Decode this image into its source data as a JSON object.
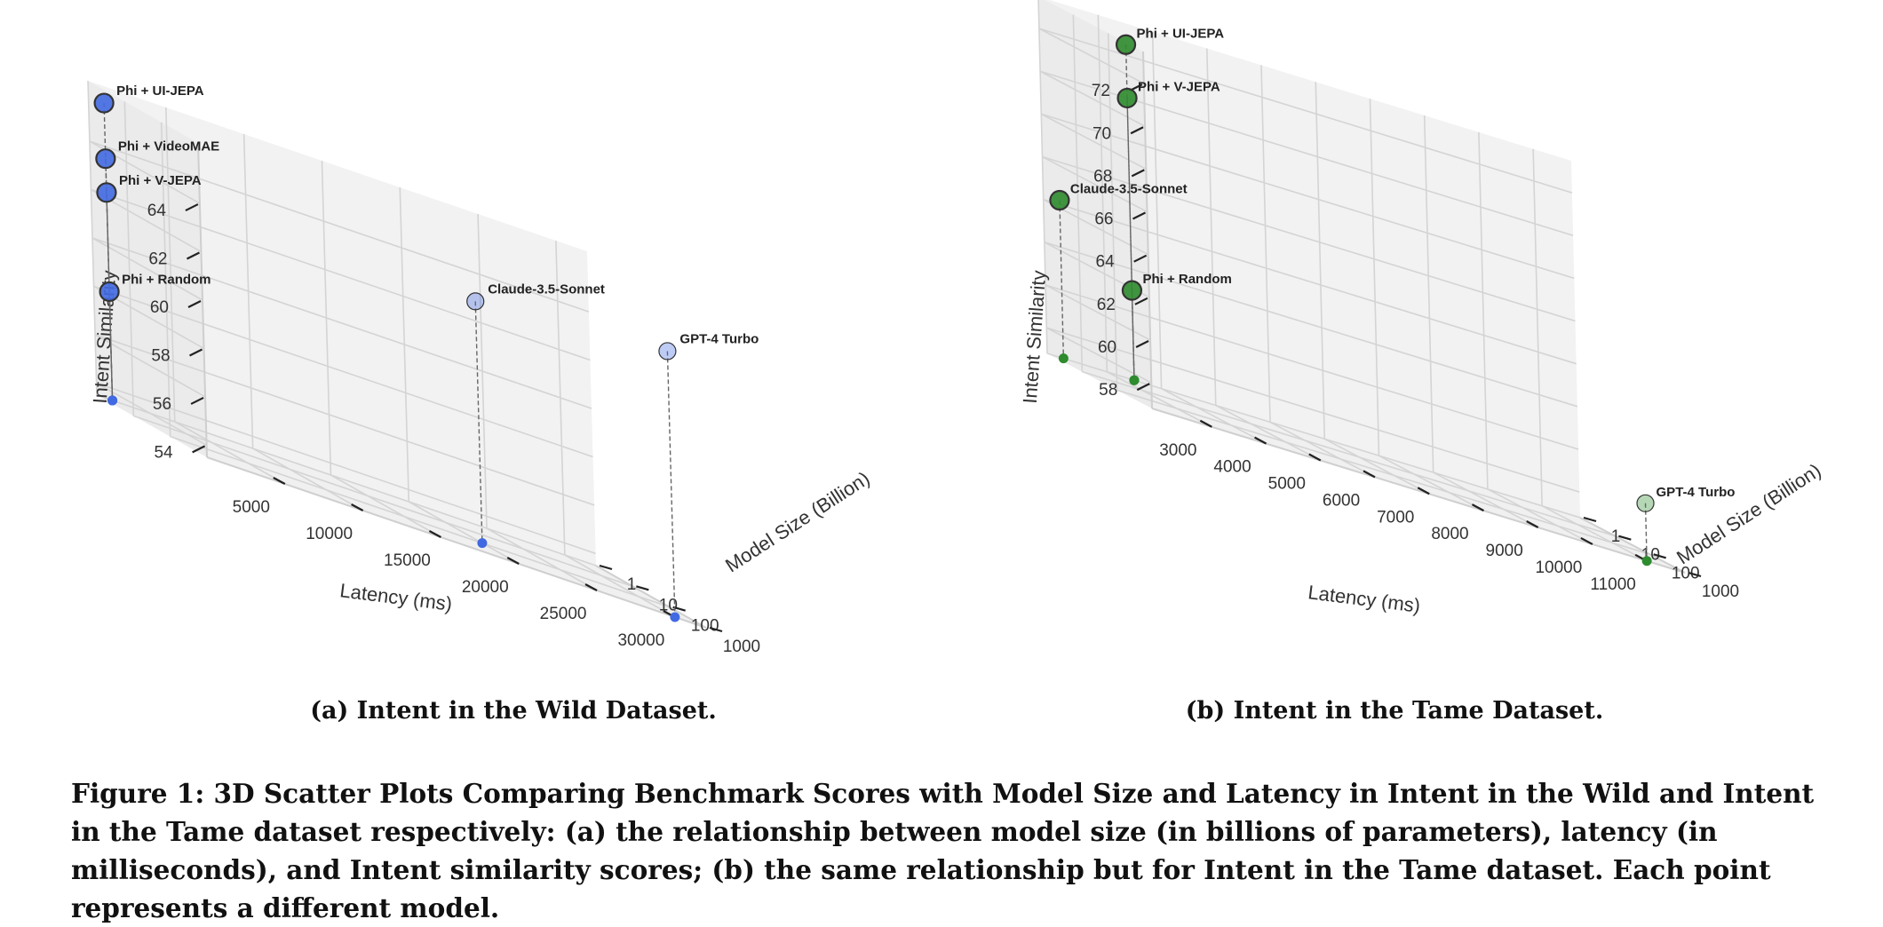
{
  "chart_data": [
    {
      "type": "scatter",
      "subcaption": "(a) Intent in the Wild Dataset.",
      "xlabel": "Latency (ms)",
      "ylabel": "Model Size (Billion)",
      "zlabel": "Intent Similarity",
      "x_ticks": [
        "5000",
        "10000",
        "15000",
        "20000",
        "25000",
        "30000"
      ],
      "y_ticks": [
        "1",
        "10",
        "100",
        "1000"
      ],
      "z_ticks": [
        "54",
        "56",
        "58",
        "60",
        "62",
        "64"
      ],
      "y_scale": "log",
      "grid": true,
      "color": "#4169e1",
      "points": [
        {
          "label": "Phi + UI-JEPA",
          "x": 1000,
          "y": 1,
          "z": 65.8
        },
        {
          "label": "Phi + VideoMAE",
          "x": 1000,
          "y": 1,
          "z": 63.5
        },
        {
          "label": "Phi + V-JEPA",
          "x": 1000,
          "y": 1,
          "z": 62.1
        },
        {
          "label": "Phi + Random",
          "x": 1000,
          "y": 1,
          "z": 58.0
        },
        {
          "label": "Claude-3.5-Sonnet",
          "x": 20000,
          "y": 100,
          "z": 63.5
        },
        {
          "label": "GPT-4 Turbo",
          "x": 30000,
          "y": 1000,
          "z": 64.5
        }
      ]
    },
    {
      "type": "scatter",
      "subcaption": "(b) Intent in the Tame Dataset.",
      "xlabel": "Latency (ms)",
      "ylabel": "Model Size (Billion)",
      "zlabel": "Intent Similarity",
      "x_ticks": [
        "3000",
        "4000",
        "5000",
        "6000",
        "7000",
        "8000",
        "9000",
        "10000",
        "11000"
      ],
      "y_ticks": [
        "1",
        "10",
        "100",
        "1000"
      ],
      "z_ticks": [
        "58",
        "60",
        "62",
        "64",
        "66",
        "68",
        "70",
        "72"
      ],
      "y_scale": "log",
      "grid": true,
      "color": "#2e8b2e",
      "points": [
        {
          "label": "Phi + UI-JEPA",
          "x": 3500,
          "y": 1,
          "z": 72.5
        },
        {
          "label": "Phi + V-JEPA",
          "x": 3500,
          "y": 1,
          "z": 70.0
        },
        {
          "label": "Claude-3.5-Sonnet",
          "x": 2200,
          "y": 1,
          "z": 64.2
        },
        {
          "label": "Phi + Random",
          "x": 3500,
          "y": 1,
          "z": 61.0
        },
        {
          "label": "GPT-4 Turbo",
          "x": 11000,
          "y": 1000,
          "z": 59.5
        }
      ]
    }
  ],
  "figure_caption": "Figure 1: 3D Scatter Plots Comparing Benchmark Scores with Model Size and Latency in Intent in the Wild and Intent in the Tame dataset respectively: (a) the relationship between model size (in billions of parameters), latency (in milliseconds), and Intent similarity scores; (b) the same relationship but for Intent in the Tame dataset. Each point represents a different model."
}
